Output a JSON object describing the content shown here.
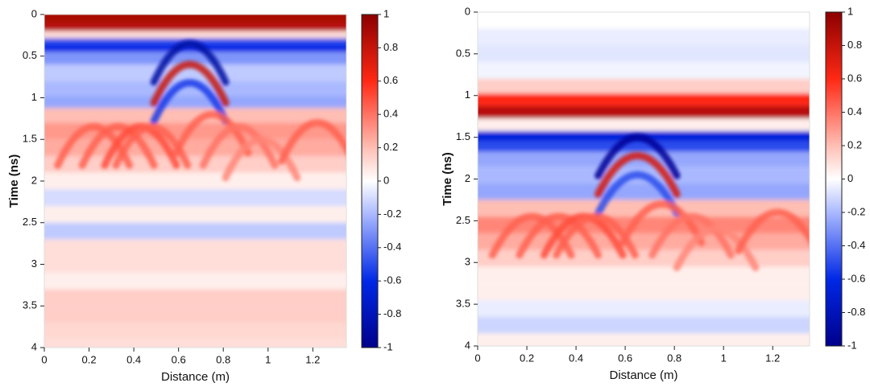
{
  "chart_data": [
    {
      "type": "heatmap",
      "xlabel": "Distance (m)",
      "ylabel": "Time (ns)",
      "xlim": [
        0,
        1.35
      ],
      "xticks": [
        0,
        0.2,
        0.4,
        0.6,
        0.8,
        1,
        1.2
      ],
      "ylim": [
        0,
        4
      ],
      "yticks": [
        0,
        0.5,
        1,
        1.5,
        2,
        2.5,
        3,
        3.5,
        4
      ],
      "y_inverted": true,
      "clim": [
        -1,
        1
      ],
      "cticks": [
        -1,
        -0.8,
        -0.6,
        -0.4,
        -0.2,
        0,
        0.2,
        0.4,
        0.6,
        0.8,
        1
      ],
      "y": [
        0.05,
        0.15,
        0.25,
        0.32,
        0.4,
        0.5,
        0.7,
        0.9,
        1.05,
        1.2,
        1.4,
        1.6,
        1.8,
        2.0,
        2.2,
        2.4,
        2.6,
        2.8,
        3.0,
        3.2,
        3.4,
        3.6,
        3.8,
        4.0
      ],
      "values": [
        0.9,
        0.85,
        0.1,
        -0.5,
        -0.6,
        -0.3,
        -0.15,
        -0.2,
        -0.25,
        0.2,
        0.3,
        0.25,
        0.15,
        0.05,
        -0.1,
        0.05,
        -0.15,
        0.1,
        0.1,
        0.05,
        0.15,
        0.15,
        0.12,
        0.1
      ],
      "hyperbolas": [
        {
          "x": 0.65,
          "t0": 0.35,
          "amplitude": -0.9
        },
        {
          "x": 0.65,
          "t0": 0.6,
          "amplitude": 0.8
        },
        {
          "x": 0.65,
          "t0": 0.82,
          "amplitude": -0.55
        },
        {
          "x": 0.22,
          "t0": 1.35,
          "amplitude": 0.45
        },
        {
          "x": 0.33,
          "t0": 1.35,
          "amplitude": 0.45
        },
        {
          "x": 0.43,
          "t0": 1.35,
          "amplitude": 0.5
        },
        {
          "x": 0.48,
          "t0": 1.35,
          "amplitude": 0.45
        },
        {
          "x": 0.75,
          "t0": 1.2,
          "amplitude": 0.45
        },
        {
          "x": 0.87,
          "t0": 1.35,
          "amplitude": 0.4
        },
        {
          "x": 0.97,
          "t0": 1.5,
          "amplitude": 0.35
        },
        {
          "x": 1.22,
          "t0": 1.3,
          "amplitude": 0.45
        }
      ]
    },
    {
      "type": "heatmap",
      "xlabel": "Distance (m)",
      "ylabel": "Time (ns)",
      "xlim": [
        0,
        1.35
      ],
      "xticks": [
        0,
        0.2,
        0.4,
        0.6,
        0.8,
        1,
        1.2
      ],
      "ylim": [
        0,
        4
      ],
      "yticks": [
        0,
        0.5,
        1,
        1.5,
        2,
        2.5,
        3,
        3.5,
        4
      ],
      "y_inverted": true,
      "clim": [
        -1,
        1
      ],
      "cticks": [
        -1,
        -0.8,
        -0.6,
        -0.4,
        -0.2,
        0,
        0.2,
        0.4,
        0.6,
        0.8,
        1
      ],
      "y": [
        0.1,
        0.3,
        0.5,
        0.7,
        0.9,
        1.05,
        1.2,
        1.35,
        1.5,
        1.6,
        1.75,
        1.95,
        2.15,
        2.35,
        2.55,
        2.75,
        2.95,
        3.15,
        3.35,
        3.55,
        3.75,
        3.95
      ],
      "values": [
        0,
        -0.05,
        -0.07,
        -0.03,
        0.15,
        0.6,
        0.85,
        0.05,
        -0.65,
        -0.5,
        -0.25,
        -0.2,
        -0.25,
        0.2,
        0.35,
        0.25,
        0.15,
        0.05,
        0.05,
        -0.05,
        -0.12,
        0.05
      ],
      "hyperbolas": [
        {
          "x": 0.65,
          "t0": 1.5,
          "amplitude": -0.95
        },
        {
          "x": 0.65,
          "t0": 1.72,
          "amplitude": 0.75
        },
        {
          "x": 0.65,
          "t0": 1.95,
          "amplitude": -0.5
        },
        {
          "x": 0.22,
          "t0": 2.45,
          "amplitude": 0.45
        },
        {
          "x": 0.33,
          "t0": 2.45,
          "amplitude": 0.45
        },
        {
          "x": 0.43,
          "t0": 2.45,
          "amplitude": 0.5
        },
        {
          "x": 0.48,
          "t0": 2.45,
          "amplitude": 0.45
        },
        {
          "x": 0.75,
          "t0": 2.3,
          "amplitude": 0.45
        },
        {
          "x": 0.87,
          "t0": 2.45,
          "amplitude": 0.4
        },
        {
          "x": 0.97,
          "t0": 2.6,
          "amplitude": 0.35
        },
        {
          "x": 1.22,
          "t0": 2.4,
          "amplitude": 0.45
        }
      ]
    }
  ]
}
